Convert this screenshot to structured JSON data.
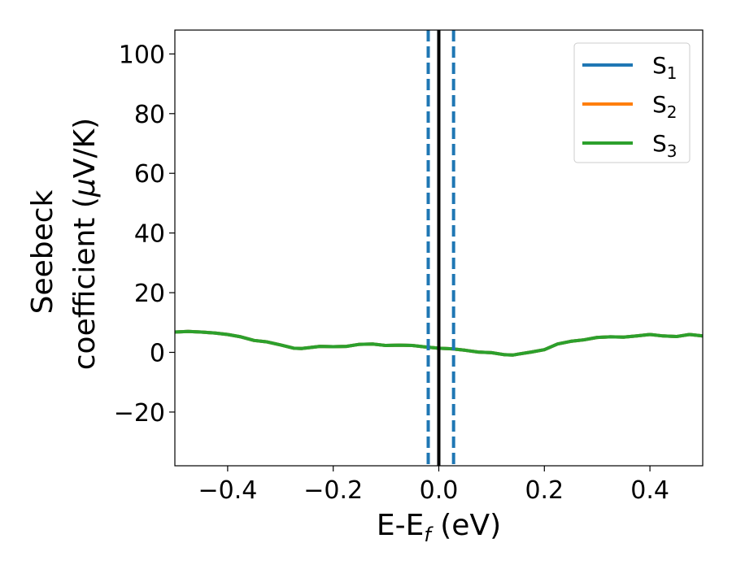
{
  "chart_data": {
    "type": "line",
    "xlabel": "E-E",
    "xlabel_sub": "f",
    "xlabel_unit": " (eV)",
    "ylabel_line1": "Seebeck",
    "ylabel_line2": "coefficient  (",
    "ylabel_mu": "μ",
    "ylabel_unit": "V/K)",
    "xlim": [
      -0.5,
      0.5
    ],
    "ylim": [
      -38,
      108
    ],
    "x_ticks": [
      -0.4,
      -0.2,
      0.0,
      0.2,
      0.4
    ],
    "x_tick_labels": [
      "−0.4",
      "−0.2",
      "0.0",
      "0.2",
      "0.4"
    ],
    "y_ticks": [
      -20,
      0,
      20,
      40,
      60,
      80,
      100
    ],
    "y_tick_labels": [
      "−20",
      "0",
      "20",
      "40",
      "60",
      "80",
      "100"
    ],
    "grid": false,
    "legend_position": "top-right",
    "series": [
      {
        "name": "S",
        "sub": "1",
        "color": "#1f77b4",
        "x": [
          -0.5,
          -0.475,
          -0.45,
          -0.425,
          -0.4,
          -0.375,
          -0.35,
          -0.325,
          -0.3,
          -0.275,
          -0.26,
          -0.25,
          -0.225,
          -0.2,
          -0.175,
          -0.15,
          -0.125,
          -0.1,
          -0.075,
          -0.05,
          -0.025,
          0.0,
          0.025,
          0.05,
          0.075,
          0.1,
          0.125,
          0.14,
          0.15,
          0.175,
          0.2,
          0.225,
          0.25,
          0.275,
          0.3,
          0.325,
          0.35,
          0.375,
          0.4,
          0.425,
          0.45,
          0.475,
          0.5
        ],
        "y": [
          6.8,
          7.0,
          6.8,
          6.5,
          6.0,
          5.2,
          4.0,
          3.5,
          2.5,
          1.4,
          1.3,
          1.5,
          2.0,
          1.9,
          2.0,
          2.7,
          2.8,
          2.3,
          2.4,
          2.3,
          1.8,
          1.4,
          1.2,
          0.7,
          0.1,
          -0.1,
          -0.8,
          -0.9,
          -0.6,
          0.1,
          0.9,
          2.8,
          3.7,
          4.2,
          5.0,
          5.2,
          5.1,
          5.5,
          6.0,
          5.5,
          5.3,
          6.0,
          5.5
        ]
      },
      {
        "name": "S",
        "sub": "2",
        "color": "#ff7f0e",
        "x": [
          -0.5,
          -0.475,
          -0.45,
          -0.425,
          -0.4,
          -0.375,
          -0.35,
          -0.325,
          -0.3,
          -0.275,
          -0.26,
          -0.25,
          -0.225,
          -0.2,
          -0.175,
          -0.15,
          -0.125,
          -0.1,
          -0.075,
          -0.05,
          -0.025,
          0.0,
          0.025,
          0.05,
          0.075,
          0.1,
          0.125,
          0.14,
          0.15,
          0.175,
          0.2,
          0.225,
          0.25,
          0.275,
          0.3,
          0.325,
          0.35,
          0.375,
          0.4,
          0.425,
          0.45,
          0.475,
          0.5
        ],
        "y": [
          6.8,
          7.0,
          6.8,
          6.5,
          6.0,
          5.2,
          4.0,
          3.5,
          2.5,
          1.4,
          1.3,
          1.5,
          2.0,
          1.9,
          2.0,
          2.7,
          2.8,
          2.3,
          2.4,
          2.3,
          1.8,
          1.4,
          1.2,
          0.7,
          0.1,
          -0.1,
          -0.8,
          -0.9,
          -0.6,
          0.1,
          0.9,
          2.8,
          3.7,
          4.2,
          5.0,
          5.2,
          5.1,
          5.5,
          6.0,
          5.5,
          5.3,
          6.0,
          5.5
        ]
      },
      {
        "name": "S",
        "sub": "3",
        "color": "#2ca02c",
        "x": [
          -0.5,
          -0.475,
          -0.45,
          -0.425,
          -0.4,
          -0.375,
          -0.35,
          -0.325,
          -0.3,
          -0.275,
          -0.26,
          -0.25,
          -0.225,
          -0.2,
          -0.175,
          -0.15,
          -0.125,
          -0.1,
          -0.075,
          -0.05,
          -0.025,
          0.0,
          0.025,
          0.05,
          0.075,
          0.1,
          0.125,
          0.14,
          0.15,
          0.175,
          0.2,
          0.225,
          0.25,
          0.275,
          0.3,
          0.325,
          0.35,
          0.375,
          0.4,
          0.425,
          0.45,
          0.475,
          0.5
        ],
        "y": [
          6.8,
          7.0,
          6.8,
          6.5,
          6.0,
          5.2,
          4.0,
          3.5,
          2.5,
          1.4,
          1.3,
          1.5,
          2.0,
          1.9,
          2.0,
          2.7,
          2.8,
          2.3,
          2.4,
          2.3,
          1.8,
          1.4,
          1.2,
          0.7,
          0.1,
          -0.1,
          -0.8,
          -0.9,
          -0.6,
          0.1,
          0.9,
          2.8,
          3.7,
          4.2,
          5.0,
          5.2,
          5.1,
          5.5,
          6.0,
          5.5,
          5.3,
          6.0,
          5.5
        ]
      }
    ],
    "vertical_lines": [
      {
        "x": -0.02,
        "style": "dashed",
        "color": "#1f77b4"
      },
      {
        "x": 0.0,
        "style": "solid",
        "color": "#000000"
      },
      {
        "x": 0.028,
        "style": "dashed",
        "color": "#1f77b4"
      }
    ]
  }
}
